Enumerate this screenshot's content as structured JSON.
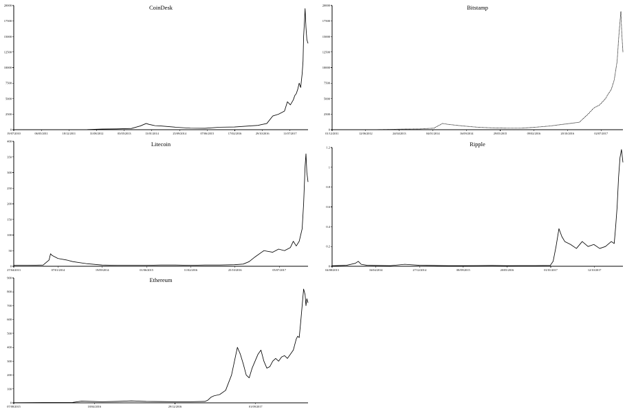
{
  "chart_data": [
    {
      "id": "coindesk",
      "type": "line",
      "title": "CoinDesk",
      "ylim": [
        0,
        20000
      ],
      "yticks": [
        0,
        2500,
        5000,
        7500,
        10000,
        12500,
        15000,
        17500,
        20000
      ],
      "xticks": [
        "19/07/2010",
        "06/05/2011",
        "18/12/2011",
        "31/08/2012",
        "03/05/2013",
        "13/01/2014",
        "25/09/2014",
        "07/06/2015",
        "17/02/2016",
        "29/10/2016",
        "11/07/2017"
      ],
      "series": [
        {
          "x": [
            0,
            0.05,
            0.1,
            0.15,
            0.2,
            0.25,
            0.3,
            0.35,
            0.4,
            0.43,
            0.45,
            0.46,
            0.47,
            0.48,
            0.5,
            0.55,
            0.6,
            0.65,
            0.7,
            0.75,
            0.8,
            0.83,
            0.86,
            0.88,
            0.9,
            0.92,
            0.93,
            0.94,
            0.95,
            0.955,
            0.96,
            0.965,
            0.97,
            0.975,
            0.98,
            0.983,
            0.985,
            0.988,
            0.99,
            0.993,
            0.996,
            1.0
          ],
          "y": [
            0,
            0,
            5,
            10,
            12,
            15,
            100,
            130,
            200,
            600,
            1000,
            850,
            750,
            650,
            600,
            400,
            250,
            230,
            400,
            430,
            600,
            700,
            1000,
            2200,
            2500,
            3000,
            4500,
            4000,
            4800,
            5500,
            5800,
            6500,
            7500,
            6800,
            9000,
            11000,
            15000,
            17500,
            19500,
            16500,
            14500,
            13900
          ]
        }
      ]
    },
    {
      "id": "bitstamp",
      "type": "line",
      "title": "Bitstamp",
      "ylim": [
        0,
        20000
      ],
      "yticks": [
        0,
        2500,
        5000,
        7500,
        10000,
        12500,
        15000,
        17500,
        20000
      ],
      "xticks": [
        "01/12/2011",
        "12/06/2012",
        "24/04/2013",
        "04/01/2014",
        "16/09/2014",
        "29/05/2015",
        "09/02/2016",
        "20/10/2016",
        "02/07/2017"
      ],
      "series": [
        {
          "x": [
            0,
            0.05,
            0.1,
            0.15,
            0.2,
            0.25,
            0.3,
            0.35,
            0.38,
            0.4,
            0.42,
            0.45,
            0.5,
            0.55,
            0.6,
            0.65,
            0.7,
            0.75,
            0.8,
            0.85,
            0.88,
            0.9,
            0.92,
            0.94,
            0.95,
            0.96,
            0.97,
            0.98,
            0.985,
            0.99,
            0.993,
            0.996,
            1.0
          ],
          "y": [
            0,
            0,
            5,
            10,
            50,
            100,
            120,
            250,
            1000,
            850,
            750,
            600,
            400,
            300,
            250,
            250,
            400,
            600,
            900,
            1200,
            2500,
            3500,
            4000,
            5000,
            5800,
            6500,
            8000,
            11000,
            14500,
            17500,
            19000,
            15500,
            12500
          ]
        }
      ]
    },
    {
      "id": "litecoin",
      "type": "line",
      "title": "Litecoin",
      "ylim": [
        0,
        400
      ],
      "yticks": [
        0,
        50,
        100,
        150,
        200,
        250,
        300,
        350,
        400
      ],
      "xticks": [
        "27/04/2013",
        "07/01/2014",
        "19/09/2014",
        "01/06/2015",
        "11/02/2016",
        "25/10/2016",
        "05/07/2017"
      ],
      "series": [
        {
          "x": [
            0,
            0.05,
            0.1,
            0.12,
            0.125,
            0.13,
            0.14,
            0.15,
            0.18,
            0.2,
            0.25,
            0.3,
            0.35,
            0.4,
            0.45,
            0.5,
            0.55,
            0.6,
            0.65,
            0.7,
            0.75,
            0.78,
            0.8,
            0.82,
            0.85,
            0.88,
            0.9,
            0.92,
            0.94,
            0.95,
            0.96,
            0.97,
            0.975,
            0.98,
            0.985,
            0.99,
            0.993,
            0.996,
            1.0
          ],
          "y": [
            3,
            3,
            4,
            20,
            40,
            35,
            30,
            25,
            20,
            15,
            8,
            4,
            3,
            3,
            3,
            4,
            4,
            3,
            4,
            4,
            5,
            7,
            15,
            30,
            50,
            45,
            55,
            50,
            60,
            80,
            65,
            80,
            100,
            120,
            200,
            320,
            360,
            300,
            270
          ]
        }
      ]
    },
    {
      "id": "ripple",
      "type": "line",
      "title": "Ripple",
      "ylim": [
        0,
        1.2
      ],
      "yticks": [
        0,
        0.2,
        0.4,
        0.6,
        0.8,
        1,
        1.2
      ],
      "ytick_labels": [
        "0",
        "0.2",
        "0.4",
        "0.6",
        "0.8",
        "1",
        "1.2"
      ],
      "xticks": [
        "04/08/2013",
        "16/04/2014",
        "27/12/2014",
        "08/09/2015",
        "20/05/2016",
        "01/01/2017",
        "12/10/2017"
      ],
      "series": [
        {
          "x": [
            0,
            0.05,
            0.08,
            0.09,
            0.1,
            0.12,
            0.15,
            0.2,
            0.25,
            0.3,
            0.35,
            0.4,
            0.45,
            0.5,
            0.55,
            0.6,
            0.65,
            0.7,
            0.75,
            0.76,
            0.77,
            0.78,
            0.79,
            0.8,
            0.82,
            0.84,
            0.86,
            0.88,
            0.9,
            0.92,
            0.94,
            0.96,
            0.97,
            0.975,
            0.98,
            0.985,
            0.99,
            0.995,
            1.0
          ],
          "y": [
            0.005,
            0.01,
            0.03,
            0.05,
            0.02,
            0.01,
            0.008,
            0.006,
            0.02,
            0.01,
            0.008,
            0.006,
            0.006,
            0.007,
            0.008,
            0.006,
            0.007,
            0.007,
            0.008,
            0.05,
            0.2,
            0.38,
            0.3,
            0.25,
            0.22,
            0.18,
            0.25,
            0.2,
            0.22,
            0.18,
            0.2,
            0.25,
            0.23,
            0.4,
            0.6,
            0.9,
            1.1,
            1.18,
            1.05
          ]
        }
      ]
    },
    {
      "id": "ethereum",
      "type": "line",
      "title": "Ethereum",
      "ylim": [
        0,
        900
      ],
      "yticks": [
        0,
        100,
        200,
        300,
        400,
        500,
        600,
        700,
        800,
        900
      ],
      "xticks": [
        "07/08/2015",
        "18/04/2016",
        "29/12/2016",
        "01/09/2017"
      ],
      "series": [
        {
          "x": [
            0,
            0.1,
            0.2,
            0.23,
            0.3,
            0.35,
            0.4,
            0.45,
            0.5,
            0.55,
            0.6,
            0.65,
            0.66,
            0.67,
            0.68,
            0.7,
            0.72,
            0.74,
            0.75,
            0.76,
            0.77,
            0.78,
            0.79,
            0.8,
            0.81,
            0.82,
            0.83,
            0.84,
            0.85,
            0.86,
            0.87,
            0.88,
            0.89,
            0.9,
            0.91,
            0.92,
            0.93,
            0.94,
            0.95,
            0.96,
            0.965,
            0.97,
            0.975,
            0.98,
            0.985,
            0.99,
            0.993,
            0.996,
            1.0
          ],
          "y": [
            1,
            2,
            3,
            12,
            8,
            10,
            14,
            10,
            9,
            8,
            8,
            10,
            20,
            40,
            50,
            60,
            90,
            200,
            300,
            400,
            350,
            280,
            200,
            180,
            250,
            300,
            350,
            380,
            300,
            250,
            260,
            300,
            320,
            300,
            330,
            340,
            320,
            350,
            380,
            460,
            480,
            470,
            580,
            700,
            820,
            780,
            700,
            750,
            720
          ]
        }
      ]
    }
  ]
}
